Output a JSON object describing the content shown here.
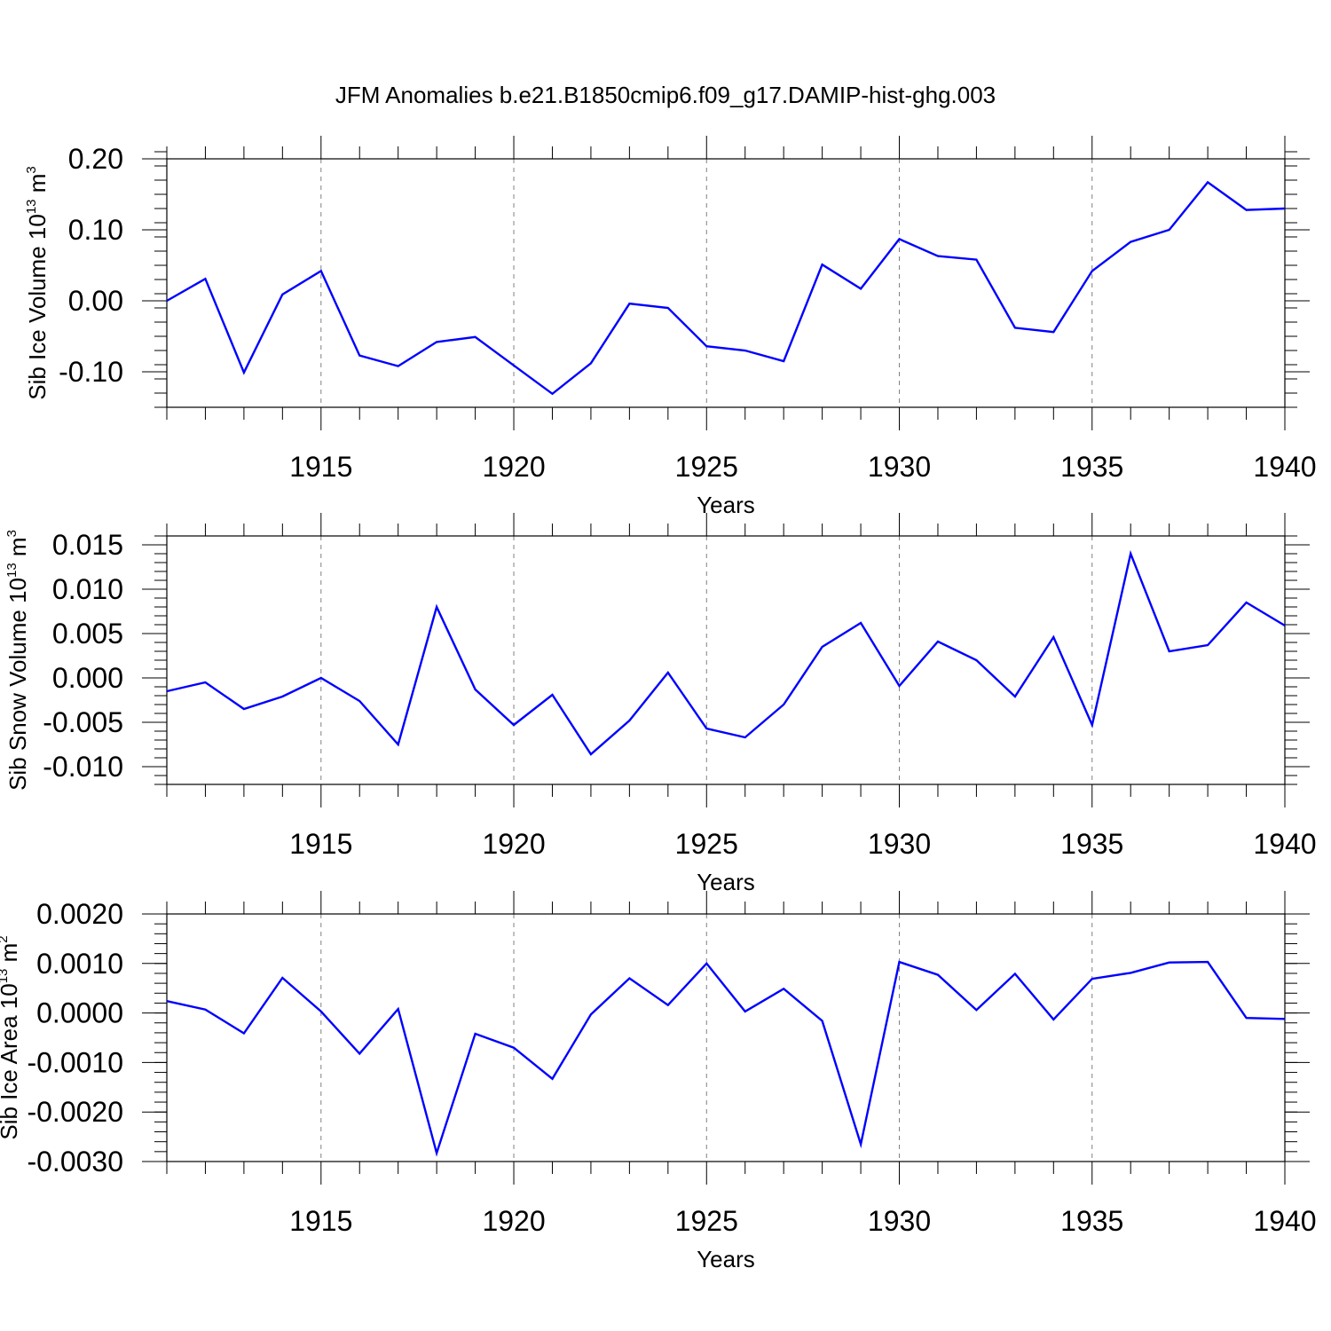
{
  "title": "JFM Anomalies b.e21.B1850cmip6.f09_g17.DAMIP-hist-ghg.003",
  "colors": {
    "line": "#0000ff",
    "axis": "#000000",
    "grid": "#808080",
    "background": "#ffffff"
  },
  "chart_data": [
    {
      "type": "line",
      "ylabel": "Sib Ice Volume 10",
      "ylabel_exp": "13",
      "ylabel_unit": "m",
      "ylabel_unit_exp": "3",
      "xlabel": "Years",
      "xlim": [
        1911,
        1940
      ],
      "ylim": [
        -0.15,
        0.2
      ],
      "yticks": [
        -0.1,
        0.0,
        0.1,
        0.2
      ],
      "ytick_labels": [
        "-0.10",
        "0.00",
        "0.10",
        "0.20"
      ],
      "yminor_step": 0.02,
      "xticks": [
        1915,
        1920,
        1925,
        1930,
        1935,
        1940
      ],
      "xtick_labels": [
        "1915",
        "1920",
        "1925",
        "1930",
        "1935",
        "1940"
      ],
      "x": [
        1911,
        1912,
        1913,
        1914,
        1915,
        1916,
        1917,
        1918,
        1919,
        1920,
        1921,
        1922,
        1923,
        1924,
        1925,
        1926,
        1927,
        1928,
        1929,
        1930,
        1931,
        1932,
        1933,
        1934,
        1935,
        1936,
        1937,
        1938,
        1939,
        1940
      ],
      "series": [
        {
          "name": "Sib Ice Volume",
          "values": [
            0.0,
            0.031,
            -0.101,
            0.009,
            0.042,
            -0.077,
            -0.092,
            -0.058,
            -0.051,
            -0.091,
            -0.131,
            -0.088,
            -0.004,
            -0.01,
            -0.064,
            -0.07,
            -0.085,
            0.051,
            0.017,
            0.087,
            0.063,
            0.058,
            -0.038,
            -0.044,
            0.042,
            0.083,
            0.1,
            0.167,
            0.128,
            0.13
          ]
        }
      ]
    },
    {
      "type": "line",
      "ylabel": "Sib Snow Volume 10",
      "ylabel_exp": "13",
      "ylabel_unit": "m",
      "ylabel_unit_exp": "3",
      "xlabel": "Years",
      "xlim": [
        1911,
        1940
      ],
      "ylim": [
        -0.012,
        0.016
      ],
      "yticks": [
        -0.01,
        -0.005,
        0.0,
        0.005,
        0.01,
        0.015
      ],
      "ytick_labels": [
        "-0.010",
        "-0.005",
        "0.000",
        "0.005",
        "0.010",
        "0.015"
      ],
      "yminor_step": 0.001,
      "xticks": [
        1915,
        1920,
        1925,
        1930,
        1935,
        1940
      ],
      "xtick_labels": [
        "1915",
        "1920",
        "1925",
        "1930",
        "1935",
        "1940"
      ],
      "x": [
        1911,
        1912,
        1913,
        1914,
        1915,
        1916,
        1917,
        1918,
        1919,
        1920,
        1921,
        1922,
        1923,
        1924,
        1925,
        1926,
        1927,
        1928,
        1929,
        1930,
        1931,
        1932,
        1933,
        1934,
        1935,
        1936,
        1937,
        1938,
        1939,
        1940
      ],
      "series": [
        {
          "name": "Sib Snow Volume",
          "values": [
            -0.0015,
            -0.0005,
            -0.0035,
            -0.0021,
            0.0,
            -0.0026,
            -0.0075,
            0.008,
            -0.0013,
            -0.0053,
            -0.0019,
            -0.0086,
            -0.0048,
            0.0006,
            -0.0057,
            -0.0067,
            -0.003,
            0.0035,
            0.0062,
            -0.0009,
            0.0041,
            0.002,
            -0.0021,
            0.0046,
            -0.0053,
            0.014,
            0.003,
            0.0037,
            0.0085,
            0.0059
          ]
        }
      ]
    },
    {
      "type": "line",
      "ylabel": "Sib Ice Area 10",
      "ylabel_exp": "13",
      "ylabel_unit": "m",
      "ylabel_unit_exp": "2",
      "xlabel": "Years",
      "xlim": [
        1911,
        1940
      ],
      "ylim": [
        -0.003,
        0.002
      ],
      "yticks": [
        -0.003,
        -0.002,
        -0.001,
        0.0,
        0.001,
        0.002
      ],
      "ytick_labels": [
        "-0.0030",
        "-0.0020",
        "-0.0010",
        "0.0000",
        "0.0010",
        "0.0020"
      ],
      "yminor_step": 0.0002,
      "xticks": [
        1915,
        1920,
        1925,
        1930,
        1935,
        1940
      ],
      "xtick_labels": [
        "1915",
        "1920",
        "1925",
        "1930",
        "1935",
        "1940"
      ],
      "x": [
        1911,
        1912,
        1913,
        1914,
        1915,
        1916,
        1917,
        1918,
        1919,
        1920,
        1921,
        1922,
        1923,
        1924,
        1925,
        1926,
        1927,
        1928,
        1929,
        1930,
        1931,
        1932,
        1933,
        1934,
        1935,
        1936,
        1937,
        1938,
        1939,
        1940
      ],
      "series": [
        {
          "name": "Sib Ice Area",
          "values": [
            0.00024,
            7e-05,
            -0.00041,
            0.00071,
            3e-05,
            -0.00082,
            8e-05,
            -0.00283,
            -0.00042,
            -0.0007,
            -0.00133,
            -3e-05,
            0.0007,
            0.00016,
            0.001,
            3e-05,
            0.00049,
            -0.00016,
            -0.00265,
            0.00103,
            0.00077,
            6e-05,
            0.00079,
            -0.00013,
            0.00069,
            0.00081,
            0.00102,
            0.00103,
            -0.0001,
            -0.00012
          ]
        }
      ]
    }
  ]
}
